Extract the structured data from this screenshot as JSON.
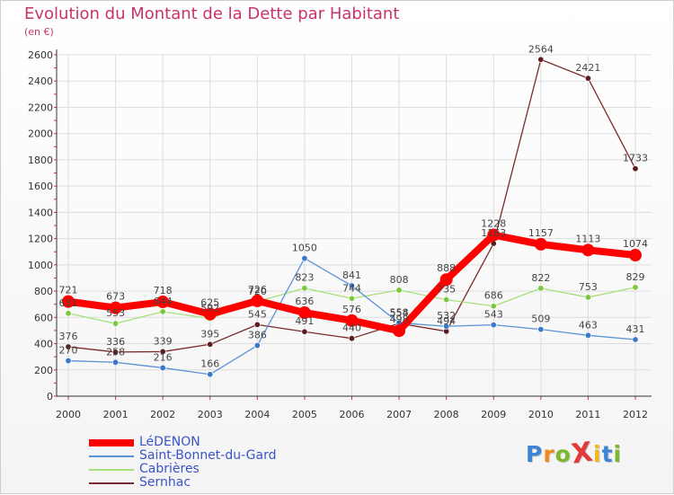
{
  "title": "Evolution du Montant de la Dette par Habitant",
  "subtitle": "(en €)",
  "chart_data": {
    "type": "line",
    "x": [
      "2000",
      "2001",
      "2002",
      "2003",
      "2004",
      "2005",
      "2006",
      "2007",
      "2008",
      "2009",
      "2010",
      "2011",
      "2012"
    ],
    "ylim": [
      0,
      2600
    ],
    "yticks": [
      0,
      200,
      400,
      600,
      800,
      1000,
      1200,
      1400,
      1600,
      1800,
      2000,
      2200,
      2400,
      2600
    ],
    "grid": true,
    "legend_position": "bottom-left",
    "series": [
      {
        "name": "LéDENON",
        "color": "#ff0000",
        "values": [
          721,
          673,
          718,
          625,
          726,
          636,
          576,
          498,
          888,
          1228,
          1157,
          1113,
          1074
        ]
      },
      {
        "name": "Saint-Bonnet-du-Gard",
        "color": "#5b93d6",
        "values": [
          270,
          258,
          216,
          166,
          386,
          1050,
          841,
          558,
          532,
          543,
          509,
          463,
          431
        ]
      },
      {
        "name": "Cabrières",
        "color": "#a6e07a",
        "values": [
          631,
          553,
          644,
          592,
          720,
          823,
          744,
          808,
          735,
          686,
          822,
          753,
          829
        ]
      },
      {
        "name": "Sernhac",
        "color": "#7a2a2a",
        "values": [
          376,
          336,
          339,
          395,
          545,
          491,
          440,
          554,
          494,
          1163,
          2564,
          2421,
          1733
        ]
      }
    ]
  },
  "logo": {
    "text": "ProXiti",
    "colors": [
      "#3d84d6",
      "#f08a1c",
      "#7ab82e",
      "#e23a3a",
      "#f0b81c",
      "#3d84d6",
      "#7ab82e"
    ]
  }
}
